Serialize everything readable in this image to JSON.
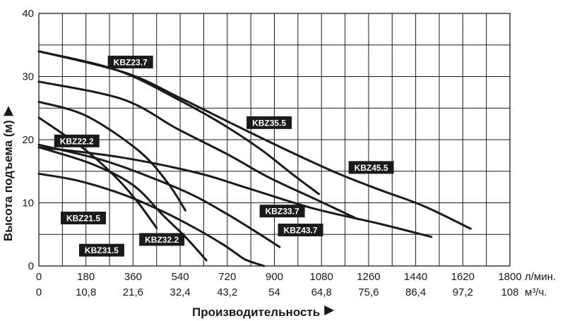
{
  "chart_data": {
    "type": "line",
    "xlabel": "Производительность",
    "ylabel": "Высота подъема (м)",
    "x_unit_primary": "л/мин.",
    "x_unit_secondary": "м³/ч.",
    "xlim": [
      0,
      1800
    ],
    "ylim": [
      0,
      40
    ],
    "x_ticks": [
      0,
      180,
      360,
      540,
      720,
      900,
      1080,
      1260,
      1440,
      1620,
      1800
    ],
    "x_ticks_secondary": [
      "0",
      "10,8",
      "21,6",
      "32,4",
      "43,2",
      "54",
      "64,8",
      "75,6",
      "86,4",
      "97,2",
      "108"
    ],
    "y_ticks": [
      0,
      10,
      20,
      30,
      40
    ],
    "grid": true,
    "grid_x_step": 90,
    "grid_y_step": 5,
    "series": [
      {
        "name": "KBZ23.7",
        "x": [
          0,
          300,
          540,
          700,
          850,
          970,
          1070
        ],
        "y": [
          34,
          31,
          26.2,
          22.5,
          18.4,
          14.5,
          11.4
        ]
      },
      {
        "name": "KBZ35.5",
        "x": [
          0,
          320,
          530,
          720,
          880,
          1050,
          1220
        ],
        "y": [
          29.2,
          26.4,
          21.7,
          17.7,
          14,
          10.7,
          7.4
        ]
      },
      {
        "name": "KBZ45.5",
        "x": [
          0,
          330,
          540,
          750,
          960,
          1140,
          1300,
          1470,
          1650
        ],
        "y": [
          34,
          30.6,
          26.6,
          22.3,
          18.1,
          14.7,
          12.1,
          9.5,
          5.9
        ]
      },
      {
        "name": "KBZ22.2",
        "x": [
          0,
          180,
          380,
          490,
          560
        ],
        "y": [
          26,
          23.8,
          18.3,
          13.3,
          8.8
        ]
      },
      {
        "name": "KBZ21.5",
        "x": [
          0,
          180,
          300,
          380,
          450
        ],
        "y": [
          23.5,
          18.3,
          13.8,
          10,
          6
        ]
      },
      {
        "name": "KBZ31.5",
        "x": [
          0,
          200,
          360,
          480,
          560,
          640
        ],
        "y": [
          18.8,
          16.2,
          12.8,
          7.8,
          4.6,
          0.9
        ]
      },
      {
        "name": "KBZ32.2",
        "x": [
          0,
          240,
          430,
          590,
          720,
          830,
          920
        ],
        "y": [
          19.2,
          16.8,
          14,
          11.2,
          8.2,
          5.4,
          3
        ]
      },
      {
        "name": "KBZ33.7",
        "x": [
          0,
          150,
          330,
          480,
          610,
          700,
          750,
          790,
          860
        ],
        "y": [
          14.6,
          13.5,
          11.2,
          8.5,
          5.7,
          3.5,
          2.1,
          1,
          0
        ]
      },
      {
        "name": "KBZ43.7",
        "x": [
          0,
          300,
          600,
          800,
          1050,
          1300,
          1500
        ],
        "y": [
          18.8,
          17.3,
          14.8,
          12.3,
          9.1,
          6.7,
          4.6
        ]
      }
    ],
    "labels": [
      {
        "text": "KBZ23.7",
        "x": 350,
        "y": 32.3
      },
      {
        "text": "KBZ35.5",
        "x": 880,
        "y": 22.7
      },
      {
        "text": "KBZ45.5",
        "x": 1270,
        "y": 15.6
      },
      {
        "text": "KBZ22.2",
        "x": 145,
        "y": 19.8
      },
      {
        "text": "KBZ21.5",
        "x": 170,
        "y": 7.6
      },
      {
        "text": "KBZ31.5",
        "x": 240,
        "y": 2.5
      },
      {
        "text": "KBZ32.2",
        "x": 470,
        "y": 4.2
      },
      {
        "text": "KBZ33.7",
        "x": 930,
        "y": 8.7
      },
      {
        "text": "KBZ43.7",
        "x": 1000,
        "y": 5.7
      }
    ]
  }
}
